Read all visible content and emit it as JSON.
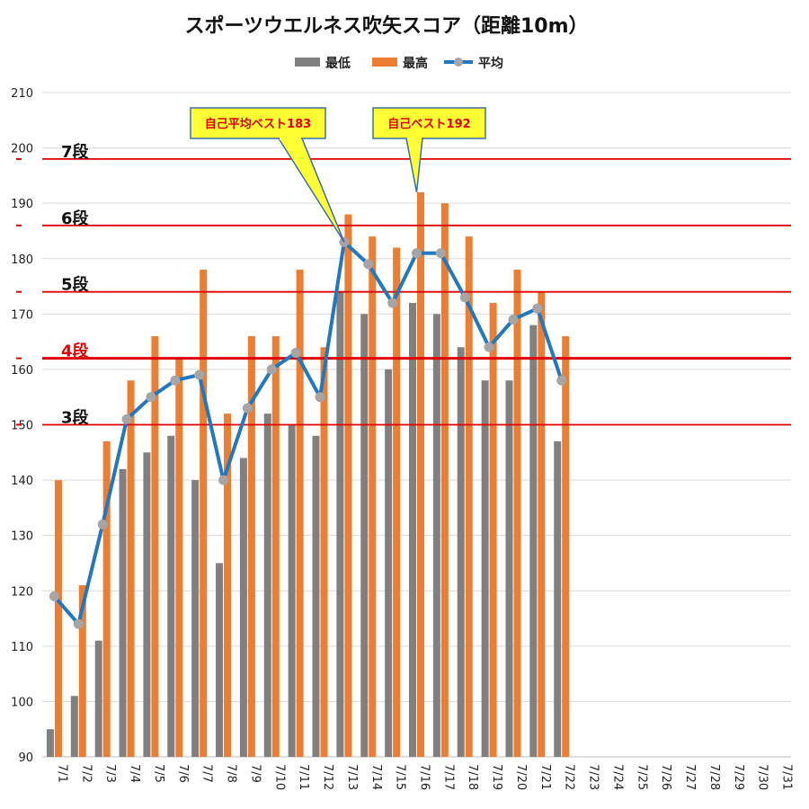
{
  "chart_data": {
    "type": "bar",
    "title": "スポーツウエルネス吹矢スコア（距離10m）",
    "xlabel": "",
    "ylabel": "",
    "ylim": [
      90,
      210
    ],
    "yticks": [
      90,
      100,
      110,
      120,
      130,
      140,
      150,
      160,
      170,
      180,
      190,
      200,
      210
    ],
    "grid": true,
    "legend_position": "top",
    "categories": [
      "7/1",
      "7/2",
      "7/3",
      "7/4",
      "7/5",
      "7/6",
      "7/7",
      "7/8",
      "7/9",
      "7/10",
      "7/11",
      "7/12",
      "7/13",
      "7/14",
      "7/15",
      "7/16",
      "7/17",
      "7/18",
      "7/19",
      "7/20",
      "7/21",
      "7/22",
      "7/23",
      "7/24",
      "7/25",
      "7/26",
      "7/27",
      "7/28",
      "7/29",
      "7/30",
      "7/31"
    ],
    "series": [
      {
        "name": "最低",
        "type": "bar",
        "color": "#808080",
        "values": [
          95,
          101,
          111,
          142,
          145,
          148,
          140,
          125,
          144,
          152,
          150,
          148,
          174,
          170,
          160,
          172,
          170,
          164,
          158,
          158,
          168,
          147,
          null,
          null,
          null,
          null,
          null,
          null,
          null,
          null,
          null
        ]
      },
      {
        "name": "最高",
        "type": "bar",
        "color": "#ED7D31",
        "values": [
          140,
          121,
          147,
          158,
          166,
          162,
          178,
          152,
          166,
          166,
          178,
          164,
          188,
          184,
          182,
          192,
          190,
          184,
          172,
          178,
          174,
          166,
          null,
          null,
          null,
          null,
          null,
          null,
          null,
          null,
          null
        ]
      },
      {
        "name": "平均",
        "type": "line",
        "color": "#1F78C1",
        "marker_color": "#A5A5A5",
        "values": [
          119,
          114,
          132,
          151,
          155,
          158,
          159,
          140,
          153,
          160,
          163,
          155,
          183,
          179,
          172,
          181,
          181,
          173,
          164,
          169,
          171,
          158,
          null,
          null,
          null,
          null,
          null,
          null,
          null,
          null,
          null
        ]
      }
    ],
    "reference_lines": [
      {
        "label": "7段",
        "value": 198,
        "label_color": "#111111",
        "line_color": "#e00000"
      },
      {
        "label": "6段",
        "value": 186,
        "label_color": "#111111",
        "line_color": "#e00000"
      },
      {
        "label": "5段",
        "value": 174,
        "label_color": "#111111",
        "line_color": "#e00000"
      },
      {
        "label": "4段",
        "value": 162,
        "label_color": "#e00000",
        "line_color": "#e00000"
      },
      {
        "label": "3段",
        "value": 150,
        "label_color": "#111111",
        "line_color": "#e00000"
      }
    ],
    "annotations": [
      {
        "text": "自己平均ベスト183",
        "category": "7/13",
        "value": 183
      },
      {
        "text": "自己ベスト192",
        "category": "7/16",
        "value": 192
      }
    ]
  }
}
